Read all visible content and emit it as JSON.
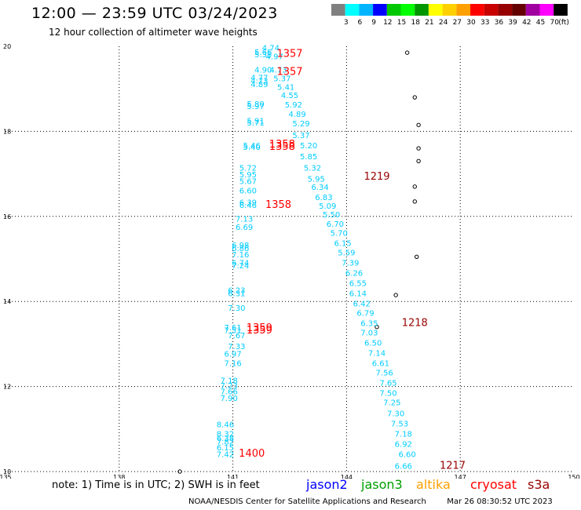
{
  "header": {
    "title": "12:00 — 23:59 UTC 03/24/2023",
    "subtitle": "12 hour collection of altimeter wave heights"
  },
  "legend": {
    "unit_label": "(ft)",
    "bins": [
      {
        "label": "",
        "color": "#808080"
      },
      {
        "label": "3",
        "color": "#00ffff"
      },
      {
        "label": "6",
        "color": "#00b4ff"
      },
      {
        "label": "9",
        "color": "#0000ff"
      },
      {
        "label": "12",
        "color": "#00c800"
      },
      {
        "label": "15",
        "color": "#00ff00"
      },
      {
        "label": "18",
        "color": "#009600"
      },
      {
        "label": "21",
        "color": "#ffff00"
      },
      {
        "label": "24",
        "color": "#ffd000"
      },
      {
        "label": "27",
        "color": "#ffa000"
      },
      {
        "label": "30",
        "color": "#ff0000"
      },
      {
        "label": "33",
        "color": "#c80000"
      },
      {
        "label": "36",
        "color": "#960000"
      },
      {
        "label": "39",
        "color": "#640000"
      },
      {
        "label": "42",
        "color": "#a000a0"
      },
      {
        "label": "45",
        "color": "#ff00ff"
      },
      {
        "label": "70",
        "color": "#000000"
      }
    ]
  },
  "map": {
    "lon_range": [
      135,
      150
    ],
    "lat_range": [
      10,
      20
    ],
    "lon_ticks": [
      135,
      138,
      141,
      144,
      147,
      150
    ],
    "lat_ticks": [
      10,
      12,
      14,
      16,
      18,
      20
    ],
    "gridlines": true,
    "colors": {
      "swh": "#00ccff",
      "time_cryosat": "#ff0000",
      "time_s3a": "#990000",
      "coast": "#000000"
    },
    "tracks": [
      {
        "satellite": "cryosat",
        "times": [
          {
            "label": "1357",
            "lon": 142.5,
            "lat": 19.75
          },
          {
            "label": "1357",
            "lon": 142.5,
            "lat": 19.33
          },
          {
            "label": "1358",
            "lon": 142.3,
            "lat": 17.62
          },
          {
            "label": "1358",
            "lon": 142.3,
            "lat": 17.56
          },
          {
            "label": "1358",
            "lon": 142.2,
            "lat": 16.2
          },
          {
            "label": "1359",
            "lon": 141.7,
            "lat": 13.3
          },
          {
            "label": "1359",
            "lon": 141.7,
            "lat": 13.25
          },
          {
            "label": "1400",
            "lon": 141.5,
            "lat": 10.35
          }
        ],
        "swh": [
          {
            "value": "4.74",
            "lon": 142.0,
            "lat": 19.9
          },
          {
            "value": "5.66",
            "lon": 141.8,
            "lat": 19.8
          },
          {
            "value": "5.35",
            "lon": 141.8,
            "lat": 19.74
          },
          {
            "value": "4.97",
            "lon": 142.1,
            "lat": 19.7
          },
          {
            "value": "4.90",
            "lon": 141.8,
            "lat": 19.38
          },
          {
            "value": "4.73",
            "lon": 142.2,
            "lat": 19.38
          },
          {
            "value": "4.77",
            "lon": 141.7,
            "lat": 19.2
          },
          {
            "value": "5.37",
            "lon": 142.3,
            "lat": 19.18
          },
          {
            "value": "4.73",
            "lon": 141.7,
            "lat": 19.12
          },
          {
            "value": "4.89",
            "lon": 141.7,
            "lat": 19.04
          },
          {
            "value": "5.41",
            "lon": 142.4,
            "lat": 18.98
          },
          {
            "value": "4.55",
            "lon": 142.5,
            "lat": 18.78
          },
          {
            "value": "5.80",
            "lon": 141.6,
            "lat": 18.58
          },
          {
            "value": "5.97",
            "lon": 141.6,
            "lat": 18.52
          },
          {
            "value": "5.92",
            "lon": 142.6,
            "lat": 18.56
          },
          {
            "value": "4.89",
            "lon": 142.7,
            "lat": 18.34
          },
          {
            "value": "5.91",
            "lon": 141.6,
            "lat": 18.18
          },
          {
            "value": "5.71",
            "lon": 141.6,
            "lat": 18.14
          },
          {
            "value": "5.29",
            "lon": 142.8,
            "lat": 18.12
          },
          {
            "value": "5.37",
            "lon": 142.8,
            "lat": 17.84
          },
          {
            "value": "5.46",
            "lon": 141.5,
            "lat": 17.6
          },
          {
            "value": "5.40",
            "lon": 141.5,
            "lat": 17.56
          },
          {
            "value": "5.20",
            "lon": 143.0,
            "lat": 17.6
          },
          {
            "value": "5.85",
            "lon": 143.0,
            "lat": 17.34
          },
          {
            "value": "5.72",
            "lon": 141.4,
            "lat": 17.08
          },
          {
            "value": "5.32",
            "lon": 143.1,
            "lat": 17.08
          },
          {
            "value": "5.95",
            "lon": 141.4,
            "lat": 16.92
          },
          {
            "value": "5.95",
            "lon": 143.2,
            "lat": 16.82
          },
          {
            "value": "5.67",
            "lon": 141.4,
            "lat": 16.76
          },
          {
            "value": "6.34",
            "lon": 143.3,
            "lat": 16.62
          },
          {
            "value": "6.60",
            "lon": 141.4,
            "lat": 16.54
          },
          {
            "value": "6.83",
            "lon": 143.4,
            "lat": 16.38
          },
          {
            "value": "6.39",
            "lon": 141.4,
            "lat": 16.26
          },
          {
            "value": "6.46",
            "lon": 141.4,
            "lat": 16.2
          },
          {
            "value": "5.09",
            "lon": 143.5,
            "lat": 16.18
          },
          {
            "value": "5.50",
            "lon": 143.6,
            "lat": 15.98
          },
          {
            "value": "7.13",
            "lon": 141.3,
            "lat": 15.88
          },
          {
            "value": "6.70",
            "lon": 143.7,
            "lat": 15.76
          },
          {
            "value": "6.69",
            "lon": 141.3,
            "lat": 15.68
          },
          {
            "value": "5.70",
            "lon": 143.8,
            "lat": 15.54
          },
          {
            "value": "6.15",
            "lon": 143.9,
            "lat": 15.3
          },
          {
            "value": "6.98",
            "lon": 141.2,
            "lat": 15.26
          },
          {
            "value": "6.86",
            "lon": 141.2,
            "lat": 15.18
          },
          {
            "value": "5.59",
            "lon": 144.0,
            "lat": 15.08
          },
          {
            "value": "7.16",
            "lon": 141.2,
            "lat": 15.04
          },
          {
            "value": "7.39",
            "lon": 144.1,
            "lat": 14.84
          },
          {
            "value": "6.74",
            "lon": 141.2,
            "lat": 14.84
          },
          {
            "value": "7.24",
            "lon": 141.2,
            "lat": 14.78
          },
          {
            "value": "6.26",
            "lon": 144.2,
            "lat": 14.6
          },
          {
            "value": "6.55",
            "lon": 144.3,
            "lat": 14.36
          },
          {
            "value": "6.23",
            "lon": 141.1,
            "lat": 14.2
          },
          {
            "value": "6.14",
            "lon": 144.3,
            "lat": 14.12
          },
          {
            "value": "6.31",
            "lon": 141.1,
            "lat": 14.12
          },
          {
            "value": "6.42",
            "lon": 144.4,
            "lat": 13.88
          },
          {
            "value": "7.30",
            "lon": 141.1,
            "lat": 13.78
          },
          {
            "value": "6.79",
            "lon": 144.5,
            "lat": 13.66
          },
          {
            "value": "7.61",
            "lon": 141.0,
            "lat": 13.32
          },
          {
            "value": "7.51",
            "lon": 141.0,
            "lat": 13.26
          },
          {
            "value": "6.35",
            "lon": 144.6,
            "lat": 13.42
          },
          {
            "value": "7.67",
            "lon": 141.1,
            "lat": 13.14
          },
          {
            "value": "7.03",
            "lon": 144.6,
            "lat": 13.2
          },
          {
            "value": "6.50",
            "lon": 144.7,
            "lat": 12.96
          },
          {
            "value": "7.33",
            "lon": 141.1,
            "lat": 12.88
          },
          {
            "value": "6.97",
            "lon": 141.0,
            "lat": 12.7
          },
          {
            "value": "7.14",
            "lon": 144.8,
            "lat": 12.72
          },
          {
            "value": "7.16",
            "lon": 141.0,
            "lat": 12.48
          },
          {
            "value": "6.61",
            "lon": 144.9,
            "lat": 12.48
          },
          {
            "value": "7.56",
            "lon": 145.0,
            "lat": 12.26
          },
          {
            "value": "7.18",
            "lon": 140.9,
            "lat": 12.08
          },
          {
            "value": "7.65",
            "lon": 145.1,
            "lat": 12.02
          },
          {
            "value": "7.23",
            "lon": 140.9,
            "lat": 11.96
          },
          {
            "value": "7.66",
            "lon": 140.9,
            "lat": 11.82
          },
          {
            "value": "7.50",
            "lon": 145.1,
            "lat": 11.78
          },
          {
            "value": "7.90",
            "lon": 140.9,
            "lat": 11.66
          },
          {
            "value": "7.25",
            "lon": 145.2,
            "lat": 11.56
          },
          {
            "value": "7.30",
            "lon": 145.3,
            "lat": 11.3
          },
          {
            "value": "8.46",
            "lon": 140.8,
            "lat": 11.04
          },
          {
            "value": "7.53",
            "lon": 145.4,
            "lat": 11.06
          },
          {
            "value": "8.32",
            "lon": 140.8,
            "lat": 10.82
          },
          {
            "value": "7.18",
            "lon": 145.5,
            "lat": 10.82
          },
          {
            "value": "6.38",
            "lon": 140.8,
            "lat": 10.72
          },
          {
            "value": "7.82",
            "lon": 140.8,
            "lat": 10.64
          },
          {
            "value": "6.92",
            "lon": 145.5,
            "lat": 10.58
          },
          {
            "value": "6.15",
            "lon": 140.8,
            "lat": 10.5
          },
          {
            "value": "7.42",
            "lon": 140.8,
            "lat": 10.34
          },
          {
            "value": "6.60",
            "lon": 145.6,
            "lat": 10.34
          },
          {
            "value": "6.66",
            "lon": 145.5,
            "lat": 10.06
          }
        ]
      },
      {
        "satellite": "s3a",
        "times": [
          {
            "label": "1219",
            "lon": 144.8,
            "lat": 16.86
          },
          {
            "label": "1218",
            "lon": 145.8,
            "lat": 13.42
          },
          {
            "label": "1217",
            "lon": 146.8,
            "lat": 10.06
          }
        ],
        "swh": []
      }
    ],
    "islands": [
      {
        "name": "",
        "lon": 145.6,
        "lat": 19.85
      },
      {
        "name": "",
        "lon": 145.8,
        "lat": 18.8
      },
      {
        "name": "",
        "lon": 145.9,
        "lat": 18.15
      },
      {
        "name": "",
        "lon": 145.9,
        "lat": 17.6
      },
      {
        "name": "",
        "lon": 145.9,
        "lat": 17.3
      },
      {
        "name": "",
        "lon": 145.8,
        "lat": 16.7
      },
      {
        "name": "",
        "lon": 145.8,
        "lat": 16.35
      },
      {
        "name": "",
        "lon": 145.85,
        "lat": 15.05
      },
      {
        "name": "",
        "lon": 145.3,
        "lat": 14.15
      },
      {
        "name": "",
        "lon": 144.8,
        "lat": 13.4
      },
      {
        "name": "",
        "lon": 139.6,
        "lat": 10.0
      }
    ]
  },
  "footer": {
    "note": "note: 1) Time is in UTC; 2) SWH is in feet",
    "satellites": [
      {
        "label": "jason2",
        "color": "#0000ff"
      },
      {
        "label": "jason3",
        "color": "#00a000"
      },
      {
        "label": "altika",
        "color": "#ffa000"
      },
      {
        "label": "cryosat",
        "color": "#ff0000"
      },
      {
        "label": "s3a",
        "color": "#990000"
      }
    ],
    "credit": "NOAA/NESDIS Center for Satellite Applications and Research",
    "timestamp": "Mar 26 08:30:52 UTC 2023"
  }
}
